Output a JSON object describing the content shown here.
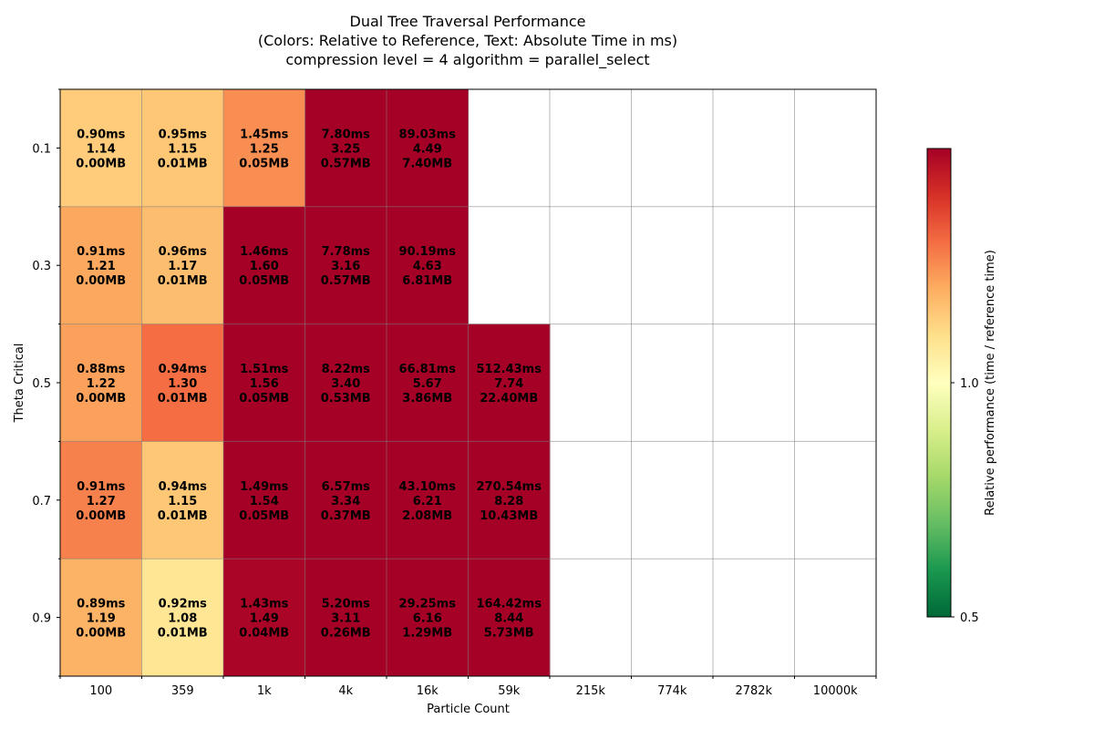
{
  "chart_data": {
    "type": "heatmap",
    "title_lines": [
      "Dual Tree Traversal Performance",
      "(Colors: Relative to Reference, Text: Absolute Time in ms)",
      "compression level = 4 algorithm = parallel_select"
    ],
    "xlabel": "Particle Count",
    "ylabel": "Theta Critical",
    "x_categories": [
      "100",
      "359",
      "1k",
      "4k",
      "16k",
      "59k",
      "215k",
      "774k",
      "2782k",
      "10000k"
    ],
    "y_categories": [
      "0.1",
      "0.3",
      "0.5",
      "0.7",
      "0.9"
    ],
    "colorbar": {
      "label": "Relative performance (time / reference time)",
      "min": 0.5,
      "max": 1.5,
      "ticks": [
        "0.5",
        "1.0"
      ],
      "colormap": "RdYlGn_r"
    },
    "colors": {
      "white": "#ffffff",
      "grid": "#808080"
    },
    "rows": [
      {
        "theta": "0.1",
        "cells": [
          {
            "time": "0.90ms",
            "ratio": "1.14",
            "mem": "0.00MB"
          },
          {
            "time": "0.95ms",
            "ratio": "1.15",
            "mem": "0.01MB"
          },
          {
            "time": "1.45ms",
            "ratio": "1.25",
            "mem": "0.05MB"
          },
          {
            "time": "7.80ms",
            "ratio": "3.25",
            "mem": "0.57MB"
          },
          {
            "time": "89.03ms",
            "ratio": "4.49",
            "mem": "7.40MB"
          },
          null,
          null,
          null,
          null,
          null
        ]
      },
      {
        "theta": "0.3",
        "cells": [
          {
            "time": "0.91ms",
            "ratio": "1.21",
            "mem": "0.00MB"
          },
          {
            "time": "0.96ms",
            "ratio": "1.17",
            "mem": "0.01MB"
          },
          {
            "time": "1.46ms",
            "ratio": "1.60",
            "mem": "0.05MB"
          },
          {
            "time": "7.78ms",
            "ratio": "3.16",
            "mem": "0.57MB"
          },
          {
            "time": "90.19ms",
            "ratio": "4.63",
            "mem": "6.81MB"
          },
          null,
          null,
          null,
          null,
          null
        ]
      },
      {
        "theta": "0.5",
        "cells": [
          {
            "time": "0.88ms",
            "ratio": "1.22",
            "mem": "0.00MB"
          },
          {
            "time": "0.94ms",
            "ratio": "1.30",
            "mem": "0.01MB"
          },
          {
            "time": "1.51ms",
            "ratio": "1.56",
            "mem": "0.05MB"
          },
          {
            "time": "8.22ms",
            "ratio": "3.40",
            "mem": "0.53MB"
          },
          {
            "time": "66.81ms",
            "ratio": "5.67",
            "mem": "3.86MB"
          },
          {
            "time": "512.43ms",
            "ratio": "7.74",
            "mem": "22.40MB"
          },
          null,
          null,
          null,
          null
        ]
      },
      {
        "theta": "0.7",
        "cells": [
          {
            "time": "0.91ms",
            "ratio": "1.27",
            "mem": "0.00MB"
          },
          {
            "time": "0.94ms",
            "ratio": "1.15",
            "mem": "0.01MB"
          },
          {
            "time": "1.49ms",
            "ratio": "1.54",
            "mem": "0.05MB"
          },
          {
            "time": "6.57ms",
            "ratio": "3.34",
            "mem": "0.37MB"
          },
          {
            "time": "43.10ms",
            "ratio": "6.21",
            "mem": "2.08MB"
          },
          {
            "time": "270.54ms",
            "ratio": "8.28",
            "mem": "10.43MB"
          },
          null,
          null,
          null,
          null
        ]
      },
      {
        "theta": "0.9",
        "cells": [
          {
            "time": "0.89ms",
            "ratio": "1.19",
            "mem": "0.00MB"
          },
          {
            "time": "0.92ms",
            "ratio": "1.08",
            "mem": "0.01MB"
          },
          {
            "time": "1.43ms",
            "ratio": "1.49",
            "mem": "0.04MB"
          },
          {
            "time": "5.20ms",
            "ratio": "3.11",
            "mem": "0.26MB"
          },
          {
            "time": "29.25ms",
            "ratio": "6.16",
            "mem": "1.29MB"
          },
          {
            "time": "164.42ms",
            "ratio": "8.44",
            "mem": "5.73MB"
          },
          null,
          null,
          null,
          null
        ]
      }
    ]
  }
}
